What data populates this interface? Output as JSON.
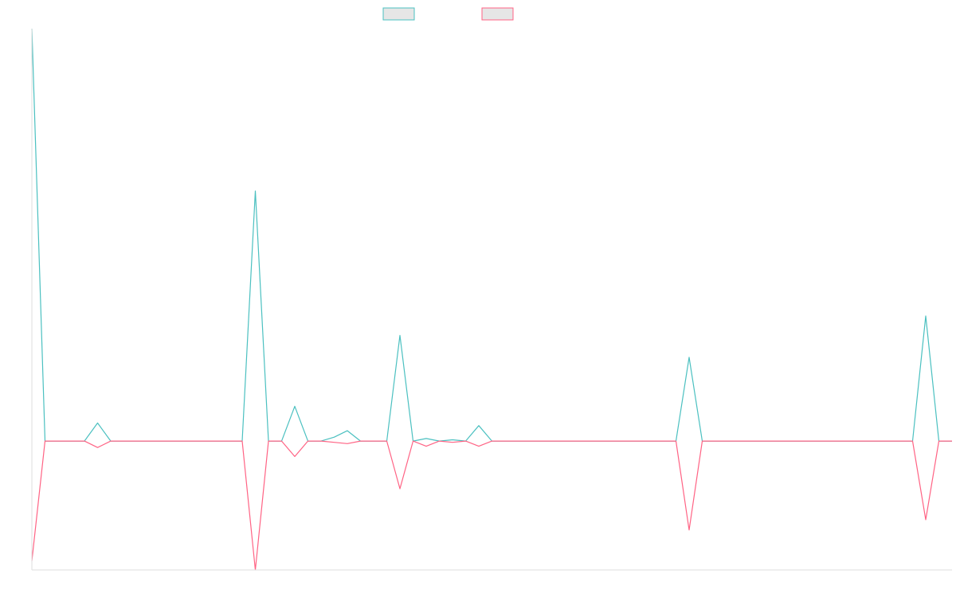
{
  "chart_data": {
    "type": "line",
    "title": "",
    "xlabel": "",
    "ylabel": "",
    "grid": false,
    "legend_position": "top-center",
    "x_count": 67,
    "ylim": [
      -1.0,
      3.2
    ],
    "series": [
      {
        "name": "",
        "color": "#4bc0c0",
        "swatch_fill": "#e6e6e6",
        "points": [
          [
            0,
            3.2
          ],
          [
            1,
            0
          ],
          [
            4,
            0
          ],
          [
            5,
            0.14
          ],
          [
            6,
            0
          ],
          [
            15,
            0
          ],
          [
            16,
            0
          ],
          [
            17,
            1.94
          ],
          [
            18,
            0
          ],
          [
            19,
            0
          ],
          [
            20,
            0.27
          ],
          [
            21,
            0
          ],
          [
            22,
            0
          ],
          [
            23,
            0.03
          ],
          [
            24,
            0.08
          ],
          [
            25,
            0
          ],
          [
            26,
            0
          ],
          [
            27,
            0
          ],
          [
            28,
            0.82
          ],
          [
            29,
            0
          ],
          [
            30,
            0.02
          ],
          [
            31,
            0
          ],
          [
            32,
            0.01
          ],
          [
            33,
            0
          ],
          [
            34,
            0.12
          ],
          [
            35,
            0
          ],
          [
            49,
            0
          ],
          [
            50,
            0.65
          ],
          [
            51,
            0
          ],
          [
            67,
            0
          ],
          [
            68,
            0.97
          ],
          [
            69,
            0
          ],
          [
            70,
            0
          ]
        ]
      },
      {
        "name": "",
        "color": "#ff6384",
        "swatch_fill": "#e6e6e6",
        "points": [
          [
            0,
            -0.93
          ],
          [
            1,
            0
          ],
          [
            4,
            0
          ],
          [
            5,
            -0.05
          ],
          [
            6,
            0
          ],
          [
            15,
            0
          ],
          [
            16,
            0
          ],
          [
            17,
            -1.0
          ],
          [
            18,
            0
          ],
          [
            19,
            0
          ],
          [
            20,
            -0.12
          ],
          [
            21,
            0
          ],
          [
            22,
            0
          ],
          [
            23,
            -0.01
          ],
          [
            24,
            -0.02
          ],
          [
            25,
            0
          ],
          [
            26,
            0
          ],
          [
            27,
            0
          ],
          [
            28,
            -0.37
          ],
          [
            29,
            0
          ],
          [
            30,
            -0.04
          ],
          [
            31,
            0
          ],
          [
            32,
            -0.01
          ],
          [
            33,
            0
          ],
          [
            34,
            -0.04
          ],
          [
            35,
            0
          ],
          [
            49,
            0
          ],
          [
            50,
            -0.69
          ],
          [
            51,
            0
          ],
          [
            67,
            0
          ],
          [
            68,
            -0.61
          ],
          [
            69,
            0
          ],
          [
            70,
            0
          ]
        ]
      }
    ]
  }
}
